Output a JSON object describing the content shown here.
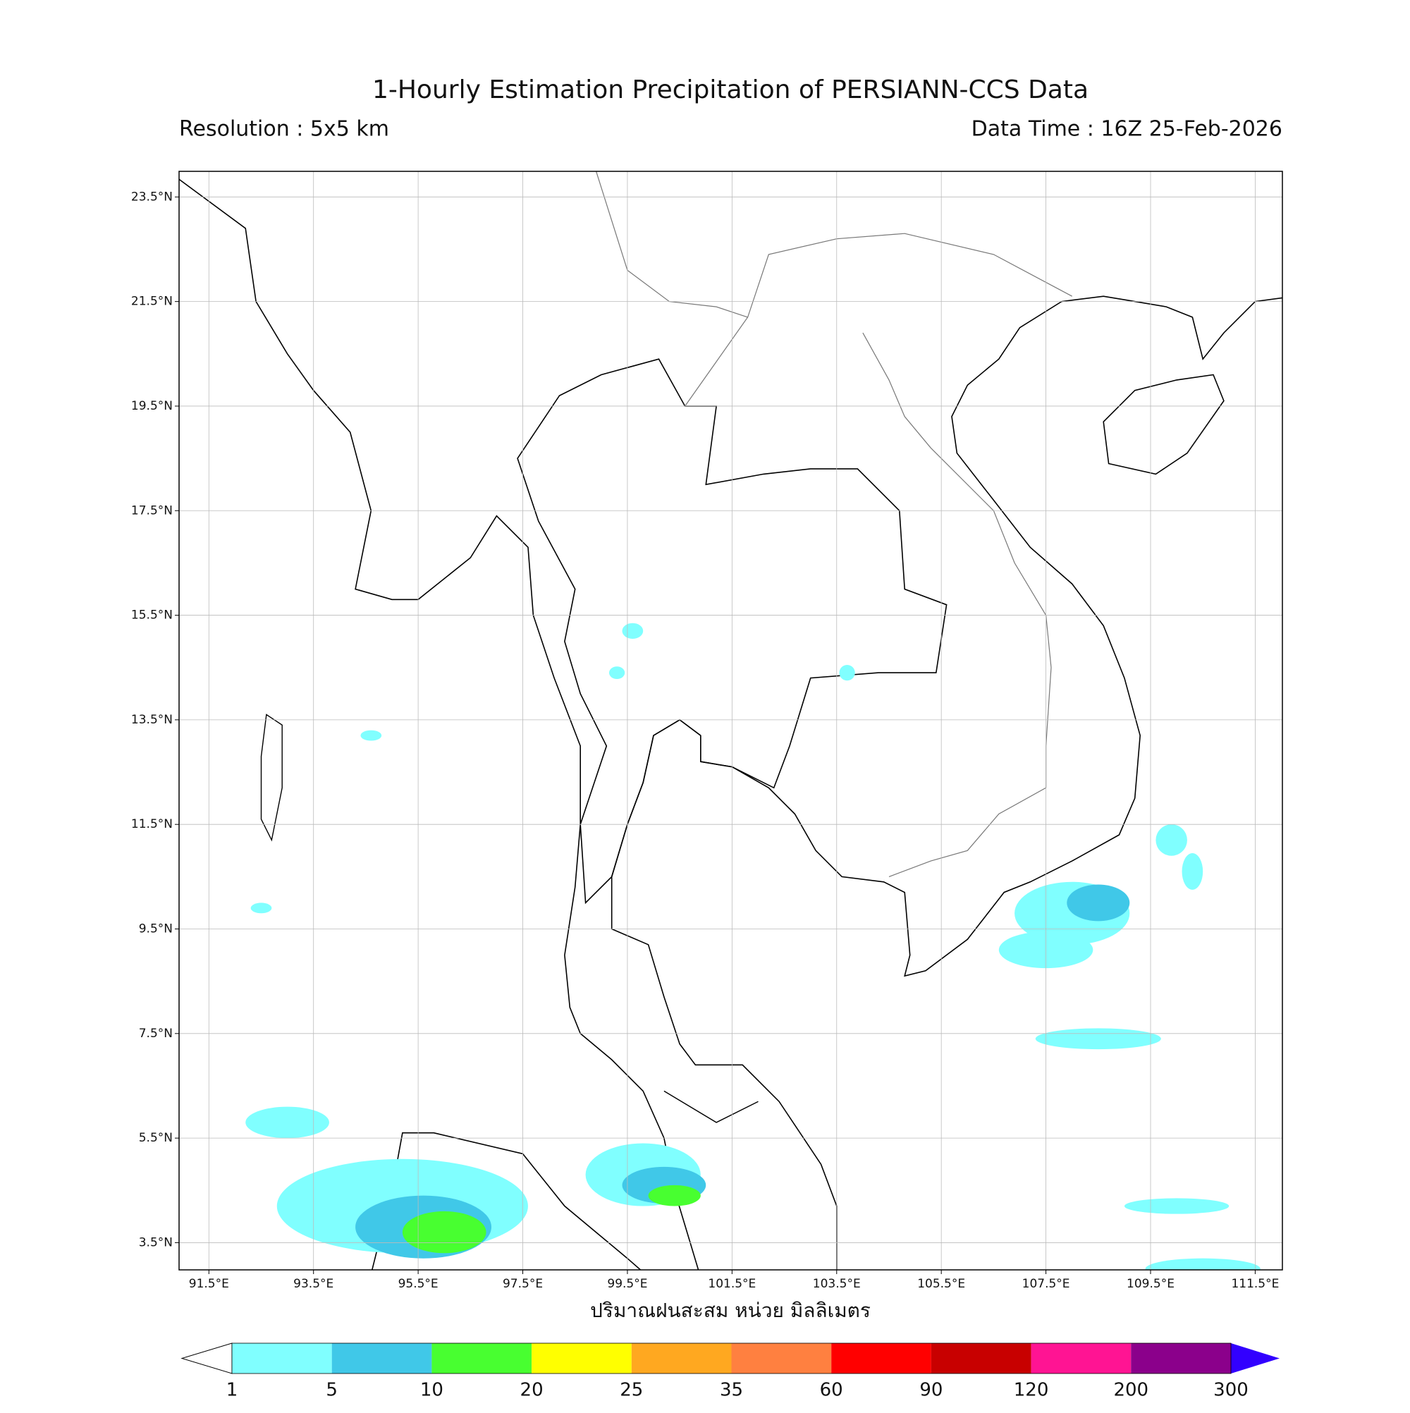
{
  "map": {
    "title": "1-Hourly Estimation Precipitation of PERSIANN-CCS Data",
    "resolution": "Resolution : 5x5 km",
    "data_time": "Data Time : 16Z 25-Feb-2026",
    "xlabel": "ปริมาณฝนสะสม หน่วย มิลลิเมตร",
    "xlim": [
      90.93,
      112.02
    ],
    "ylim": [
      2.98,
      23.99
    ],
    "xticks": [
      {
        "value": 91.5,
        "label": "91.5°E"
      },
      {
        "value": 93.5,
        "label": "93.5°E"
      },
      {
        "value": 95.5,
        "label": "95.5°E"
      },
      {
        "value": 97.5,
        "label": "97.5°E"
      },
      {
        "value": 99.5,
        "label": "99.5°E"
      },
      {
        "value": 101.5,
        "label": "101.5°E"
      },
      {
        "value": 103.5,
        "label": "103.5°E"
      },
      {
        "value": 105.5,
        "label": "105.5°E"
      },
      {
        "value": 107.5,
        "label": "107.5°E"
      },
      {
        "value": 109.5,
        "label": "109.5°E"
      },
      {
        "value": 111.5,
        "label": "111.5°E"
      }
    ],
    "yticks": [
      {
        "value": 23.5,
        "label": "23.5°N"
      },
      {
        "value": 21.5,
        "label": "21.5°N"
      },
      {
        "value": 19.5,
        "label": "19.5°N"
      },
      {
        "value": 17.5,
        "label": "17.5°N"
      },
      {
        "value": 15.5,
        "label": "15.5°N"
      },
      {
        "value": 13.5,
        "label": "13.5°N"
      },
      {
        "value": 11.5,
        "label": "11.5°N"
      },
      {
        "value": 9.5,
        "label": "9.5°N"
      },
      {
        "value": 7.5,
        "label": "7.5°N"
      },
      {
        "value": 5.5,
        "label": "5.5°N"
      },
      {
        "value": 3.5,
        "label": "3.5°N"
      }
    ],
    "grid": true
  },
  "colorbar": {
    "levels": [
      1,
      5,
      10,
      20,
      25,
      35,
      60,
      90,
      120,
      200,
      300
    ],
    "colors": [
      "#80ffff",
      "#40c8e8",
      "#48ff30",
      "#ffff00",
      "#ffa820",
      "#ff8040",
      "#ff0000",
      "#c80000",
      "#ff1493",
      "#8b008b"
    ],
    "under_color": "#ffffff",
    "over_color": "#3200ff"
  }
}
